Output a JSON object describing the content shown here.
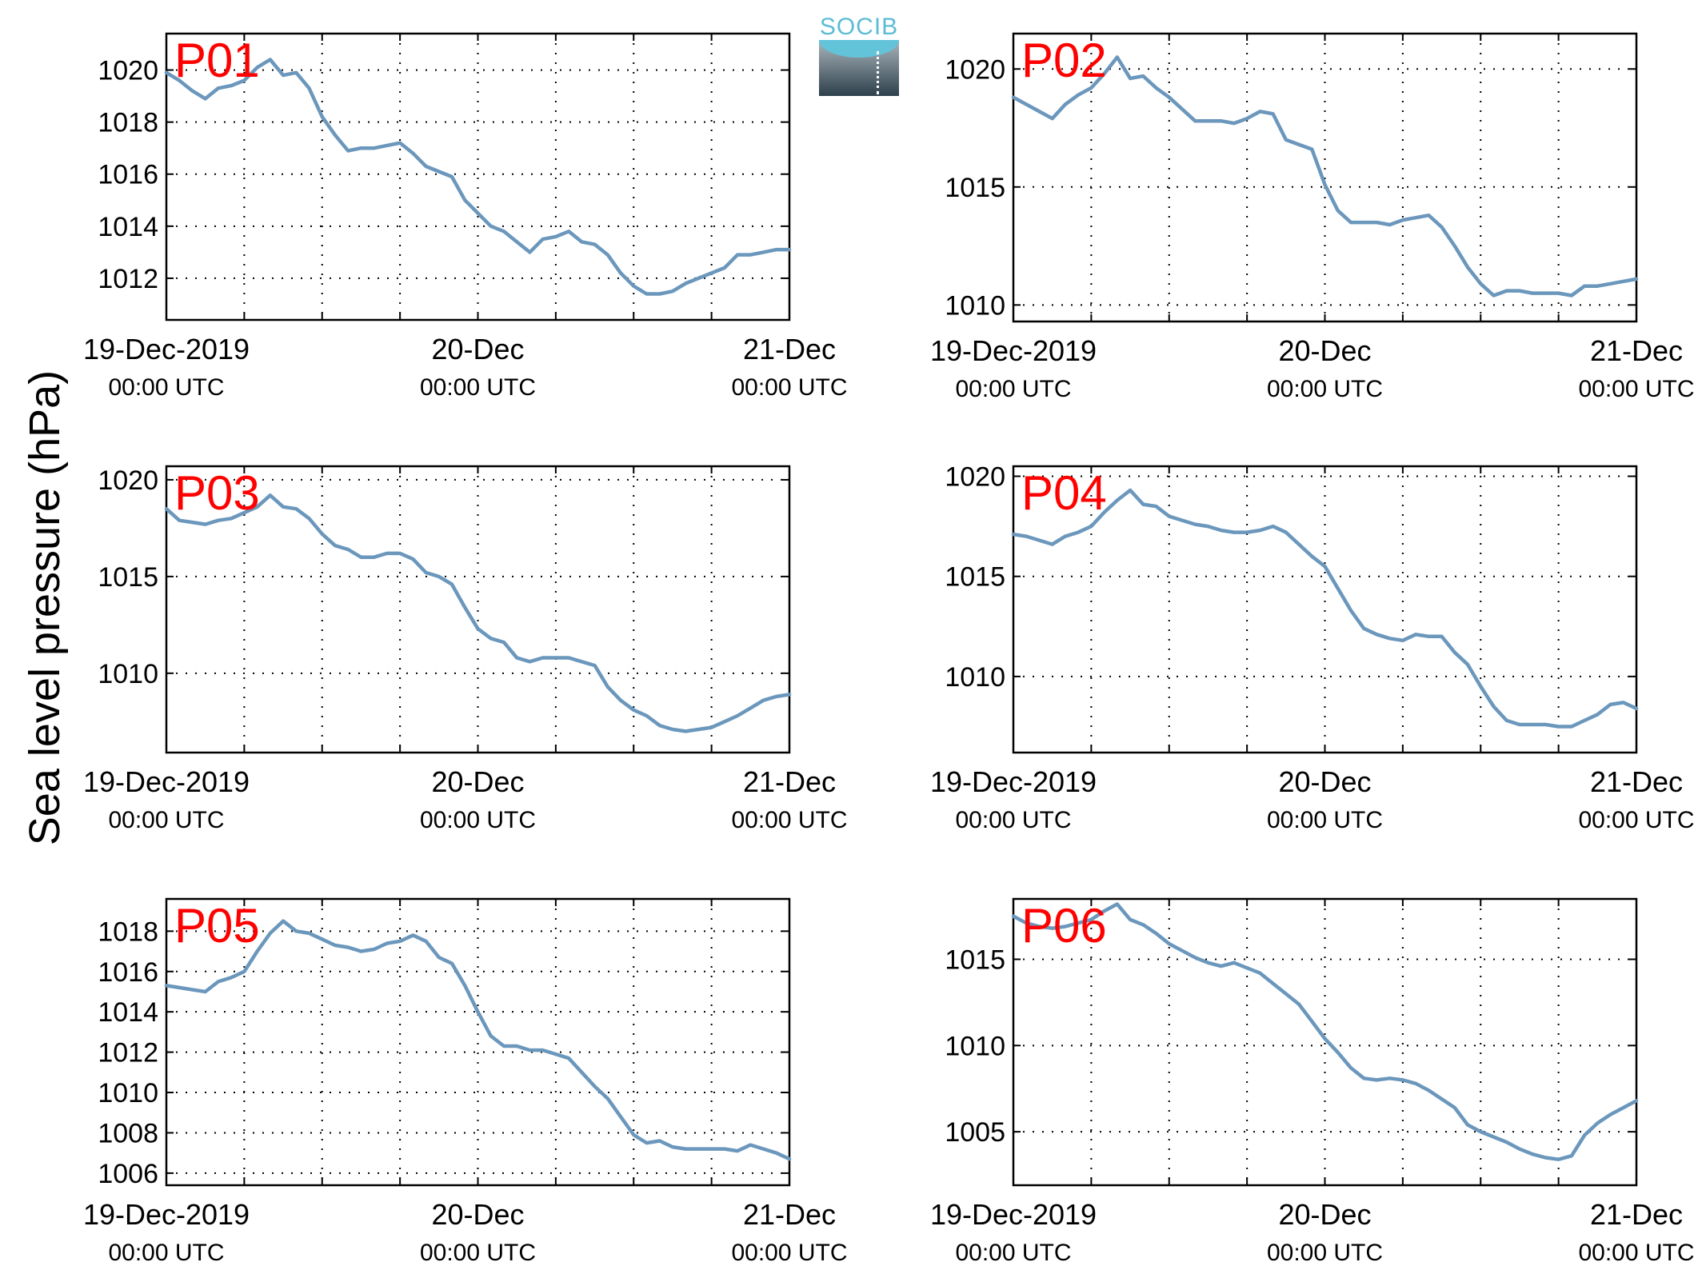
{
  "figure": {
    "ylabel": "Sea level pressure (hPa)",
    "logo_text": "SOCIB",
    "line_color": "#6b97bc",
    "label_color": "#ff0000",
    "x_ticks": [
      {
        "date": "19-Dec-2019",
        "time": "00:00 UTC"
      },
      {
        "date": "20-Dec",
        "time": "00:00 UTC"
      },
      {
        "date": "21-Dec",
        "time": "00:00 UTC"
      }
    ]
  },
  "chart_data": [
    {
      "type": "line",
      "title": "P01",
      "grid": true,
      "ylim": [
        1010.4,
        1021.4
      ],
      "yticks": [
        1012,
        1014,
        1016,
        1018,
        1020
      ],
      "xlim": [
        0,
        48
      ],
      "xunit": "hours since 19-Dec-2019 00:00 UTC",
      "x": [
        0,
        1,
        2,
        3,
        4,
        5,
        6,
        7,
        8,
        9,
        10,
        11,
        12,
        13,
        14,
        15,
        16,
        17,
        18,
        19,
        20,
        21,
        22,
        23,
        24,
        25,
        26,
        27,
        28,
        29,
        30,
        31,
        32,
        33,
        34,
        35,
        36,
        37,
        38,
        39,
        40,
        41,
        42,
        43,
        44,
        45,
        46,
        47,
        48
      ],
      "values": [
        1019.9,
        1019.6,
        1019.2,
        1018.9,
        1019.3,
        1019.4,
        1019.6,
        1020.1,
        1020.4,
        1019.8,
        1019.9,
        1019.3,
        1018.2,
        1017.5,
        1016.9,
        1017.0,
        1017.0,
        1017.1,
        1017.2,
        1016.8,
        1016.3,
        1016.1,
        1015.9,
        1015.0,
        1014.5,
        1014.0,
        1013.8,
        1013.4,
        1013.0,
        1013.5,
        1013.6,
        1013.8,
        1013.4,
        1013.3,
        1012.9,
        1012.2,
        1011.7,
        1011.4,
        1011.4,
        1011.5,
        1011.8,
        1012.0,
        1012.2,
        1012.4,
        1012.9,
        1012.9,
        1013.0,
        1013.1,
        1013.1
      ]
    },
    {
      "type": "line",
      "title": "P02",
      "grid": true,
      "ylim": [
        1009.3,
        1021.5
      ],
      "yticks": [
        1010,
        1015,
        1020
      ],
      "xlim": [
        0,
        48
      ],
      "xunit": "hours since 19-Dec-2019 00:00 UTC",
      "x": [
        0,
        1,
        2,
        3,
        4,
        5,
        6,
        7,
        8,
        9,
        10,
        11,
        12,
        13,
        14,
        15,
        16,
        17,
        18,
        19,
        20,
        21,
        22,
        23,
        24,
        25,
        26,
        27,
        28,
        29,
        30,
        31,
        32,
        33,
        34,
        35,
        36,
        37,
        38,
        39,
        40,
        41,
        42,
        43,
        44,
        45,
        46,
        47,
        48
      ],
      "values": [
        1018.8,
        1018.5,
        1018.2,
        1017.9,
        1018.5,
        1018.9,
        1019.2,
        1019.8,
        1020.5,
        1019.6,
        1019.7,
        1019.2,
        1018.8,
        1018.3,
        1017.8,
        1017.8,
        1017.8,
        1017.7,
        1017.9,
        1018.2,
        1018.1,
        1017.0,
        1016.8,
        1016.6,
        1015.1,
        1014.0,
        1013.5,
        1013.5,
        1013.5,
        1013.4,
        1013.6,
        1013.7,
        1013.8,
        1013.3,
        1012.5,
        1011.6,
        1010.9,
        1010.4,
        1010.6,
        1010.6,
        1010.5,
        1010.5,
        1010.5,
        1010.4,
        1010.8,
        1010.8,
        1010.9,
        1011.0,
        1011.1
      ]
    },
    {
      "type": "line",
      "title": "P03",
      "grid": true,
      "ylim": [
        1005.9,
        1020.7
      ],
      "yticks": [
        1010,
        1015,
        1020
      ],
      "xlim": [
        0,
        48
      ],
      "xunit": "hours since 19-Dec-2019 00:00 UTC",
      "x": [
        0,
        1,
        2,
        3,
        4,
        5,
        6,
        7,
        8,
        9,
        10,
        11,
        12,
        13,
        14,
        15,
        16,
        17,
        18,
        19,
        20,
        21,
        22,
        23,
        24,
        25,
        26,
        27,
        28,
        29,
        30,
        31,
        32,
        33,
        34,
        35,
        36,
        37,
        38,
        39,
        40,
        41,
        42,
        43,
        44,
        45,
        46,
        47,
        48
      ],
      "values": [
        1018.5,
        1017.9,
        1017.8,
        1017.7,
        1017.9,
        1018.0,
        1018.3,
        1018.6,
        1019.2,
        1018.6,
        1018.5,
        1018.0,
        1017.2,
        1016.6,
        1016.4,
        1016.0,
        1016.0,
        1016.2,
        1016.2,
        1015.9,
        1015.2,
        1015.0,
        1014.6,
        1013.4,
        1012.3,
        1011.8,
        1011.6,
        1010.8,
        1010.6,
        1010.8,
        1010.8,
        1010.8,
        1010.6,
        1010.4,
        1009.3,
        1008.6,
        1008.1,
        1007.8,
        1007.3,
        1007.1,
        1007.0,
        1007.1,
        1007.2,
        1007.5,
        1007.8,
        1008.2,
        1008.6,
        1008.8,
        1008.9
      ]
    },
    {
      "type": "line",
      "title": "P04",
      "grid": true,
      "ylim": [
        1006.2,
        1020.5
      ],
      "yticks": [
        1010,
        1015,
        1020
      ],
      "xlim": [
        0,
        48
      ],
      "xunit": "hours since 19-Dec-2019 00:00 UTC",
      "x": [
        0,
        1,
        2,
        3,
        4,
        5,
        6,
        7,
        8,
        9,
        10,
        11,
        12,
        13,
        14,
        15,
        16,
        17,
        18,
        19,
        20,
        21,
        22,
        23,
        24,
        25,
        26,
        27,
        28,
        29,
        30,
        31,
        32,
        33,
        34,
        35,
        36,
        37,
        38,
        39,
        40,
        41,
        42,
        43,
        44,
        45,
        46,
        47,
        48
      ],
      "values": [
        1017.1,
        1017.0,
        1016.8,
        1016.6,
        1017.0,
        1017.2,
        1017.5,
        1018.2,
        1018.8,
        1019.3,
        1018.6,
        1018.5,
        1018.0,
        1017.8,
        1017.6,
        1017.5,
        1017.3,
        1017.2,
        1017.2,
        1017.3,
        1017.5,
        1017.2,
        1016.6,
        1016.0,
        1015.5,
        1014.4,
        1013.3,
        1012.4,
        1012.1,
        1011.9,
        1011.8,
        1012.1,
        1012.0,
        1012.0,
        1011.2,
        1010.6,
        1009.5,
        1008.5,
        1007.8,
        1007.6,
        1007.6,
        1007.6,
        1007.5,
        1007.5,
        1007.8,
        1008.1,
        1008.6,
        1008.7,
        1008.4
      ]
    },
    {
      "type": "line",
      "title": "P05",
      "grid": true,
      "ylim": [
        1005.4,
        1019.6
      ],
      "yticks": [
        1006,
        1008,
        1010,
        1012,
        1014,
        1016,
        1018
      ],
      "xlim": [
        0,
        48
      ],
      "xunit": "hours since 19-Dec-2019 00:00 UTC",
      "x": [
        0,
        1,
        2,
        3,
        4,
        5,
        6,
        7,
        8,
        9,
        10,
        11,
        12,
        13,
        14,
        15,
        16,
        17,
        18,
        19,
        20,
        21,
        22,
        23,
        24,
        25,
        26,
        27,
        28,
        29,
        30,
        31,
        32,
        33,
        34,
        35,
        36,
        37,
        38,
        39,
        40,
        41,
        42,
        43,
        44,
        45,
        46,
        47,
        48
      ],
      "values": [
        1015.3,
        1015.2,
        1015.1,
        1015.0,
        1015.5,
        1015.7,
        1016.0,
        1017.0,
        1017.9,
        1018.5,
        1018.0,
        1017.9,
        1017.6,
        1017.3,
        1017.2,
        1017.0,
        1017.1,
        1017.4,
        1017.5,
        1017.8,
        1017.5,
        1016.7,
        1016.4,
        1015.3,
        1014.0,
        1012.8,
        1012.3,
        1012.3,
        1012.1,
        1012.1,
        1011.9,
        1011.7,
        1011.0,
        1010.3,
        1009.7,
        1008.8,
        1007.9,
        1007.5,
        1007.6,
        1007.3,
        1007.2,
        1007.2,
        1007.2,
        1007.2,
        1007.1,
        1007.4,
        1007.2,
        1007.0,
        1006.7
      ]
    },
    {
      "type": "line",
      "title": "P06",
      "grid": true,
      "ylim": [
        1001.9,
        1018.5
      ],
      "yticks": [
        1005,
        1010,
        1015
      ],
      "xlim": [
        0,
        48
      ],
      "xunit": "hours since 19-Dec-2019 00:00 UTC",
      "x": [
        0,
        1,
        2,
        3,
        4,
        5,
        6,
        7,
        8,
        9,
        10,
        11,
        12,
        13,
        14,
        15,
        16,
        17,
        18,
        19,
        20,
        21,
        22,
        23,
        24,
        25,
        26,
        27,
        28,
        29,
        30,
        31,
        32,
        33,
        34,
        35,
        36,
        37,
        38,
        39,
        40,
        41,
        42,
        43,
        44,
        45,
        46,
        47,
        48
      ],
      "values": [
        1017.5,
        1017.1,
        1016.9,
        1016.8,
        1016.9,
        1017.1,
        1017.3,
        1017.8,
        1018.2,
        1017.3,
        1017.0,
        1016.5,
        1015.9,
        1015.5,
        1015.1,
        1014.8,
        1014.6,
        1014.8,
        1014.5,
        1014.2,
        1013.6,
        1013.0,
        1012.4,
        1011.4,
        1010.4,
        1009.6,
        1008.7,
        1008.1,
        1008.0,
        1008.1,
        1008.0,
        1007.8,
        1007.4,
        1006.9,
        1006.4,
        1005.4,
        1005.0,
        1004.7,
        1004.4,
        1004.0,
        1003.7,
        1003.5,
        1003.4,
        1003.6,
        1004.8,
        1005.5,
        1006.0,
        1006.4,
        1006.8
      ]
    }
  ]
}
